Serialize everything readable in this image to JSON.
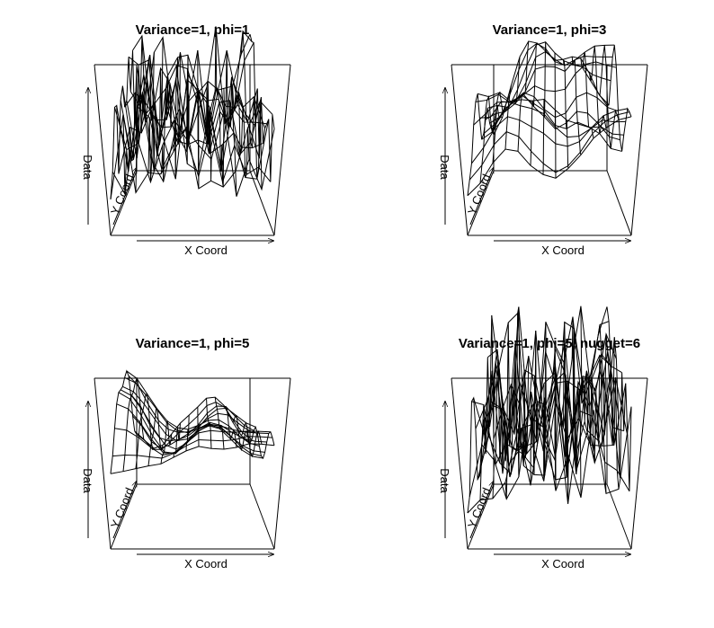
{
  "panels": [
    {
      "title": "Variance=1, phi=1",
      "x_label": "X Coord",
      "y_label": "Y Coord",
      "z_label": "Data"
    },
    {
      "title": "Variance=1, phi=3",
      "x_label": "X Coord",
      "y_label": "Y Coord",
      "z_label": "Data"
    },
    {
      "title": "Variance=1, phi=5",
      "x_label": "X Coord",
      "y_label": "Y Coord",
      "z_label": "Data"
    },
    {
      "title": "Variance=1, phi=5, nugget=6",
      "x_label": "X Coord",
      "y_label": "Y Coord",
      "z_label": "Data"
    }
  ]
}
